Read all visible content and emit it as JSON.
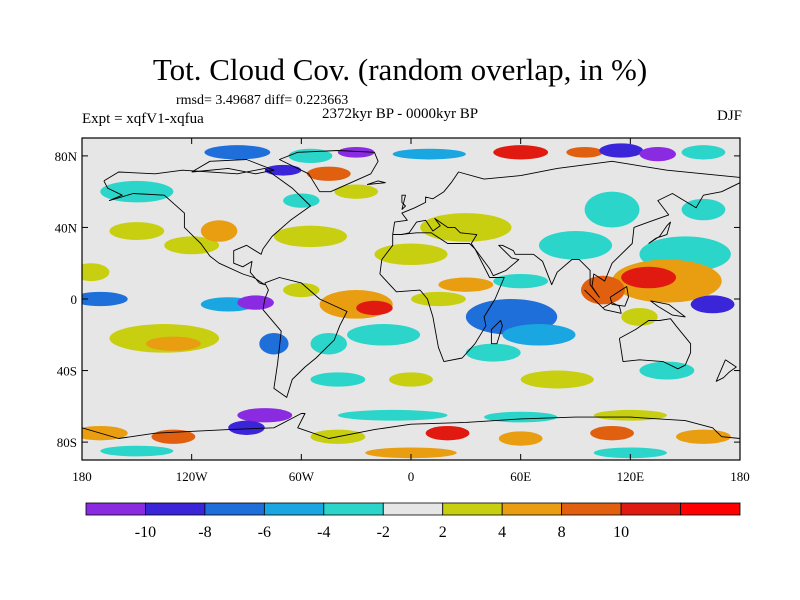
{
  "title": "Tot. Cloud Cov. (random overlap, in %)",
  "subtitle": {
    "rmsd_diff": "rmsd= 3.49687 diff= 0.223663",
    "experiment": "Expt = xqfV1-xqfua",
    "period": "2372kyr BP - 0000kyr BP",
    "season": "DJF"
  },
  "map": {
    "lon_ticks": [
      "180",
      "120W",
      "60W",
      "0",
      "60E",
      "120E",
      "180"
    ],
    "lat_ticks": [
      "80N",
      "40N",
      "0",
      "40S",
      "80S"
    ],
    "lat_tick_values": [
      80,
      40,
      0,
      -40,
      -80
    ],
    "lat_range": [
      -90,
      90
    ],
    "lon_range": [
      -180,
      180
    ],
    "background_color": "#e6e6e6",
    "coastline_color": "#000000"
  },
  "colorbar": {
    "labels": [
      "-10",
      "-8",
      "-6",
      "-4",
      "-2",
      "2",
      "4",
      "8",
      "10"
    ],
    "colors": [
      "#8a2be2",
      "#3a25d9",
      "#1f6fdb",
      "#1aa6e0",
      "#2bd5c9",
      "#e6e6e6",
      "#c8cf10",
      "#e89e10",
      "#e06010",
      "#e01a10",
      "#ff0000"
    ]
  },
  "anomalies": [
    {
      "lon": -178,
      "lat": 85,
      "rx": 12,
      "ry": 3,
      "c": 5
    },
    {
      "lon": -95,
      "lat": 82,
      "rx": 18,
      "ry": 4,
      "c": 2
    },
    {
      "lon": -55,
      "lat": 80,
      "rx": 12,
      "ry": 4,
      "c": 4
    },
    {
      "lon": -70,
      "lat": 72,
      "rx": 10,
      "ry": 3,
      "c": 1
    },
    {
      "lon": -45,
      "lat": 70,
      "rx": 12,
      "ry": 4,
      "c": 8
    },
    {
      "lon": -30,
      "lat": 82,
      "rx": 10,
      "ry": 3,
      "c": 0
    },
    {
      "lon": 10,
      "lat": 81,
      "rx": 20,
      "ry": 3,
      "c": 3
    },
    {
      "lon": 60,
      "lat": 82,
      "rx": 15,
      "ry": 4,
      "c": 9
    },
    {
      "lon": 95,
      "lat": 82,
      "rx": 10,
      "ry": 3,
      "c": 8
    },
    {
      "lon": 115,
      "lat": 83,
      "rx": 12,
      "ry": 4,
      "c": 1
    },
    {
      "lon": 135,
      "lat": 81,
      "rx": 10,
      "ry": 4,
      "c": 0
    },
    {
      "lon": 160,
      "lat": 82,
      "rx": 12,
      "ry": 4,
      "c": 4
    },
    {
      "lon": -150,
      "lat": 60,
      "rx": 20,
      "ry": 6,
      "c": 4
    },
    {
      "lon": -60,
      "lat": 55,
      "rx": 10,
      "ry": 4,
      "c": 4
    },
    {
      "lon": -30,
      "lat": 60,
      "rx": 12,
      "ry": 4,
      "c": 6
    },
    {
      "lon": 30,
      "lat": 40,
      "rx": 25,
      "ry": 8,
      "c": 6
    },
    {
      "lon": 110,
      "lat": 50,
      "rx": 15,
      "ry": 10,
      "c": 4
    },
    {
      "lon": 160,
      "lat": 50,
      "rx": 12,
      "ry": 6,
      "c": 4
    },
    {
      "lon": -150,
      "lat": 38,
      "rx": 15,
      "ry": 5,
      "c": 6
    },
    {
      "lon": -120,
      "lat": 30,
      "rx": 15,
      "ry": 5,
      "c": 6
    },
    {
      "lon": -105,
      "lat": 38,
      "rx": 10,
      "ry": 6,
      "c": 7
    },
    {
      "lon": -55,
      "lat": 35,
      "rx": 20,
      "ry": 6,
      "c": 6
    },
    {
      "lon": 0,
      "lat": 25,
      "rx": 20,
      "ry": 6,
      "c": 6
    },
    {
      "lon": 90,
      "lat": 30,
      "rx": 20,
      "ry": 8,
      "c": 4
    },
    {
      "lon": 150,
      "lat": 25,
      "rx": 25,
      "ry": 10,
      "c": 4
    },
    {
      "lon": -175,
      "lat": 15,
      "rx": 10,
      "ry": 5,
      "c": 6
    },
    {
      "lon": 140,
      "lat": 10,
      "rx": 30,
      "ry": 12,
      "c": 7
    },
    {
      "lon": 130,
      "lat": 12,
      "rx": 15,
      "ry": 6,
      "c": 9
    },
    {
      "lon": 105,
      "lat": 5,
      "rx": 12,
      "ry": 8,
      "c": 8
    },
    {
      "lon": -170,
      "lat": 0,
      "rx": 15,
      "ry": 4,
      "c": 2
    },
    {
      "lon": -100,
      "lat": -3,
      "rx": 15,
      "ry": 4,
      "c": 3
    },
    {
      "lon": -85,
      "lat": -2,
      "rx": 10,
      "ry": 4,
      "c": 0
    },
    {
      "lon": -60,
      "lat": 5,
      "rx": 10,
      "ry": 4,
      "c": 6
    },
    {
      "lon": -30,
      "lat": -3,
      "rx": 20,
      "ry": 8,
      "c": 7
    },
    {
      "lon": -20,
      "lat": -5,
      "rx": 10,
      "ry": 4,
      "c": 9
    },
    {
      "lon": 15,
      "lat": 0,
      "rx": 15,
      "ry": 4,
      "c": 6
    },
    {
      "lon": 30,
      "lat": 8,
      "rx": 15,
      "ry": 4,
      "c": 7
    },
    {
      "lon": 60,
      "lat": 10,
      "rx": 15,
      "ry": 4,
      "c": 4
    },
    {
      "lon": 55,
      "lat": -10,
      "rx": 25,
      "ry": 10,
      "c": 2
    },
    {
      "lon": 70,
      "lat": -20,
      "rx": 20,
      "ry": 6,
      "c": 3
    },
    {
      "lon": 45,
      "lat": -30,
      "rx": 15,
      "ry": 5,
      "c": 4
    },
    {
      "lon": 165,
      "lat": -3,
      "rx": 12,
      "ry": 5,
      "c": 1
    },
    {
      "lon": 125,
      "lat": -10,
      "rx": 10,
      "ry": 5,
      "c": 6
    },
    {
      "lon": -135,
      "lat": -22,
      "rx": 30,
      "ry": 8,
      "c": 6
    },
    {
      "lon": -130,
      "lat": -25,
      "rx": 15,
      "ry": 4,
      "c": 7
    },
    {
      "lon": -75,
      "lat": -25,
      "rx": 8,
      "ry": 6,
      "c": 2
    },
    {
      "lon": -45,
      "lat": -25,
      "rx": 10,
      "ry": 6,
      "c": 4
    },
    {
      "lon": -15,
      "lat": -20,
      "rx": 20,
      "ry": 6,
      "c": 4
    },
    {
      "lon": -40,
      "lat": -45,
      "rx": 15,
      "ry": 4,
      "c": 4
    },
    {
      "lon": 0,
      "lat": -45,
      "rx": 12,
      "ry": 4,
      "c": 6
    },
    {
      "lon": 80,
      "lat": -45,
      "rx": 20,
      "ry": 5,
      "c": 6
    },
    {
      "lon": 140,
      "lat": -40,
      "rx": 15,
      "ry": 5,
      "c": 4
    },
    {
      "lon": -80,
      "lat": -65,
      "rx": 15,
      "ry": 4,
      "c": 0
    },
    {
      "lon": -10,
      "lat": -65,
      "rx": 30,
      "ry": 3,
      "c": 4
    },
    {
      "lon": 60,
      "lat": -66,
      "rx": 20,
      "ry": 3,
      "c": 4
    },
    {
      "lon": 120,
      "lat": -65,
      "rx": 20,
      "ry": 3,
      "c": 6
    },
    {
      "lon": -170,
      "lat": -75,
      "rx": 15,
      "ry": 4,
      "c": 7
    },
    {
      "lon": -130,
      "lat": -77,
      "rx": 12,
      "ry": 4,
      "c": 8
    },
    {
      "lon": -90,
      "lat": -72,
      "rx": 10,
      "ry": 4,
      "c": 1
    },
    {
      "lon": -40,
      "lat": -77,
      "rx": 15,
      "ry": 4,
      "c": 6
    },
    {
      "lon": 20,
      "lat": -75,
      "rx": 12,
      "ry": 4,
      "c": 9
    },
    {
      "lon": 60,
      "lat": -78,
      "rx": 12,
      "ry": 4,
      "c": 7
    },
    {
      "lon": 110,
      "lat": -75,
      "rx": 12,
      "ry": 4,
      "c": 8
    },
    {
      "lon": 160,
      "lat": -77,
      "rx": 15,
      "ry": 4,
      "c": 7
    },
    {
      "lon": -150,
      "lat": -85,
      "rx": 20,
      "ry": 3,
      "c": 4
    },
    {
      "lon": 0,
      "lat": -86,
      "rx": 25,
      "ry": 3,
      "c": 7
    },
    {
      "lon": 120,
      "lat": -86,
      "rx": 20,
      "ry": 3,
      "c": 4
    }
  ],
  "coastlines": [
    [
      [
        -168,
        66
      ],
      [
        -160,
        71
      ],
      [
        -140,
        70
      ],
      [
        -125,
        72
      ],
      [
        -95,
        70
      ],
      [
        -80,
        73
      ],
      [
        -65,
        62
      ],
      [
        -55,
        52
      ],
      [
        -66,
        44
      ],
      [
        -76,
        35
      ],
      [
        -81,
        28
      ],
      [
        -82,
        25
      ],
      [
        -90,
        30
      ],
      [
        -97,
        27
      ],
      [
        -97,
        20
      ],
      [
        -92,
        18
      ],
      [
        -87,
        21
      ],
      [
        -88,
        15
      ],
      [
        -83,
        9
      ],
      [
        -80,
        8
      ],
      [
        -86,
        12
      ],
      [
        -92,
        14
      ],
      [
        -105,
        20
      ],
      [
        -110,
        24
      ],
      [
        -115,
        31
      ],
      [
        -118,
        34
      ],
      [
        -124,
        40
      ],
      [
        -124,
        48
      ],
      [
        -135,
        58
      ],
      [
        -152,
        59
      ],
      [
        -165,
        55
      ],
      [
        -158,
        58
      ],
      [
        -166,
        62
      ],
      [
        -168,
        66
      ]
    ],
    [
      [
        -80,
        9
      ],
      [
        -72,
        12
      ],
      [
        -60,
        9
      ],
      [
        -50,
        0
      ],
      [
        -35,
        -7
      ],
      [
        -39,
        -15
      ],
      [
        -42,
        -23
      ],
      [
        -52,
        -33
      ],
      [
        -58,
        -38
      ],
      [
        -65,
        -45
      ],
      [
        -68,
        -55
      ],
      [
        -75,
        -50
      ],
      [
        -73,
        -36
      ],
      [
        -71,
        -18
      ],
      [
        -81,
        -6
      ],
      [
        -80,
        0
      ],
      [
        -78,
        5
      ],
      [
        -80,
        9
      ]
    ],
    [
      [
        -10,
        36
      ],
      [
        -6,
        36
      ],
      [
        3,
        37
      ],
      [
        11,
        37
      ],
      [
        20,
        31
      ],
      [
        32,
        31
      ],
      [
        35,
        28
      ],
      [
        43,
        12
      ],
      [
        51,
        12
      ],
      [
        46,
        0
      ],
      [
        40,
        -10
      ],
      [
        41,
        -15
      ],
      [
        35,
        -25
      ],
      [
        28,
        -33
      ],
      [
        18,
        -35
      ],
      [
        15,
        -27
      ],
      [
        12,
        -10
      ],
      [
        9,
        0
      ],
      [
        5,
        5
      ],
      [
        -8,
        4
      ],
      [
        -17,
        14
      ],
      [
        -16,
        22
      ],
      [
        -10,
        30
      ],
      [
        -10,
        36
      ]
    ],
    [
      [
        -10,
        36
      ],
      [
        -9,
        43
      ],
      [
        -2,
        44
      ],
      [
        -5,
        48
      ],
      [
        2,
        51
      ],
      [
        8,
        54
      ],
      [
        8,
        57
      ],
      [
        12,
        56
      ],
      [
        18,
        60
      ],
      [
        22,
        65
      ],
      [
        26,
        71
      ],
      [
        40,
        67
      ],
      [
        60,
        69
      ],
      [
        80,
        73
      ],
      [
        110,
        77
      ],
      [
        140,
        72
      ],
      [
        160,
        70
      ],
      [
        180,
        68
      ],
      [
        180,
        65
      ],
      [
        170,
        60
      ],
      [
        160,
        58
      ],
      [
        156,
        51
      ],
      [
        143,
        59
      ],
      [
        135,
        55
      ],
      [
        141,
        47
      ],
      [
        130,
        43
      ],
      [
        122,
        40
      ],
      [
        121,
        31
      ],
      [
        110,
        20
      ],
      [
        106,
        10
      ],
      [
        100,
        14
      ],
      [
        99,
        7
      ],
      [
        103,
        1
      ],
      [
        98,
        8
      ],
      [
        98,
        16
      ],
      [
        92,
        22
      ],
      [
        88,
        22
      ],
      [
        80,
        15
      ],
      [
        77,
        8
      ],
      [
        72,
        21
      ],
      [
        67,
        25
      ],
      [
        57,
        25
      ],
      [
        56,
        27
      ],
      [
        50,
        30
      ],
      [
        48,
        30
      ],
      [
        55,
        23
      ],
      [
        59,
        22
      ],
      [
        52,
        16
      ],
      [
        45,
        13
      ],
      [
        43,
        17
      ],
      [
        35,
        28
      ],
      [
        33,
        31
      ],
      [
        36,
        36
      ],
      [
        27,
        37
      ],
      [
        24,
        40
      ],
      [
        20,
        40
      ],
      [
        13,
        45
      ],
      [
        16,
        41
      ],
      [
        12,
        38
      ],
      [
        8,
        44
      ],
      [
        3,
        43
      ],
      [
        -1,
        37
      ],
      [
        -5,
        36
      ],
      [
        -10,
        36
      ]
    ],
    [
      [
        -50,
        60
      ],
      [
        -44,
        60
      ],
      [
        -22,
        70
      ],
      [
        -18,
        77
      ],
      [
        -20,
        82
      ],
      [
        -40,
        83
      ],
      [
        -62,
        82
      ],
      [
        -72,
        78
      ],
      [
        -56,
        70
      ],
      [
        -50,
        60
      ]
    ],
    [
      [
        114,
        -22
      ],
      [
        116,
        -35
      ],
      [
        125,
        -34
      ],
      [
        138,
        -35
      ],
      [
        146,
        -39
      ],
      [
        150,
        -37
      ],
      [
        153,
        -30
      ],
      [
        153,
        -25
      ],
      [
        145,
        -15
      ],
      [
        142,
        -11
      ],
      [
        136,
        -12
      ],
      [
        130,
        -12
      ],
      [
        123,
        -17
      ],
      [
        114,
        -22
      ]
    ],
    [
      [
        -180,
        -72
      ],
      [
        -160,
        -78
      ],
      [
        -140,
        -75
      ],
      [
        -100,
        -73
      ],
      [
        -75,
        -72
      ],
      [
        -60,
        -64
      ],
      [
        -58,
        -64
      ],
      [
        -62,
        -72
      ],
      [
        -45,
        -78
      ],
      [
        -20,
        -73
      ],
      [
        0,
        -70
      ],
      [
        30,
        -69
      ],
      [
        60,
        -67
      ],
      [
        90,
        -66
      ],
      [
        120,
        -66
      ],
      [
        150,
        -68
      ],
      [
        165,
        -72
      ],
      [
        170,
        -77
      ],
      [
        180,
        -78
      ]
    ],
    [
      [
        -5,
        50
      ],
      [
        -3,
        58
      ],
      [
        -5,
        58
      ],
      [
        -5,
        54
      ],
      [
        -3,
        52
      ],
      [
        -5,
        50
      ]
    ],
    [
      [
        130,
        31
      ],
      [
        134,
        34
      ],
      [
        140,
        36
      ],
      [
        142,
        43
      ],
      [
        140,
        41
      ],
      [
        136,
        35
      ],
      [
        130,
        31
      ]
    ],
    [
      [
        95,
        5
      ],
      [
        106,
        -6
      ],
      [
        115,
        -8
      ],
      [
        114,
        -4
      ],
      [
        110,
        -2
      ],
      [
        105,
        -5
      ],
      [
        95,
        5
      ]
    ],
    [
      [
        109,
        1
      ],
      [
        118,
        7
      ],
      [
        119,
        1
      ],
      [
        117,
        -4
      ],
      [
        110,
        -3
      ],
      [
        109,
        1
      ]
    ],
    [
      [
        131,
        -1
      ],
      [
        141,
        -3
      ],
      [
        150,
        -10
      ],
      [
        143,
        -9
      ],
      [
        135,
        -4
      ],
      [
        131,
        -1
      ]
    ],
    [
      [
        44,
        -25
      ],
      [
        47,
        -25
      ],
      [
        50,
        -15
      ],
      [
        49,
        -12
      ],
      [
        44,
        -17
      ],
      [
        44,
        -25
      ]
    ],
    [
      [
        172,
        -34
      ],
      [
        178,
        -38
      ],
      [
        174,
        -41
      ],
      [
        171,
        -44
      ],
      [
        167,
        -46
      ],
      [
        172,
        -34
      ]
    ],
    [
      [
        -24,
        64
      ],
      [
        -14,
        65
      ],
      [
        -18,
        66
      ],
      [
        -24,
        64
      ]
    ],
    [
      [
        -120,
        71
      ],
      [
        -100,
        73
      ],
      [
        -85,
        70
      ],
      [
        -75,
        72
      ],
      [
        -90,
        78
      ],
      [
        -110,
        77
      ],
      [
        -120,
        71
      ]
    ]
  ]
}
